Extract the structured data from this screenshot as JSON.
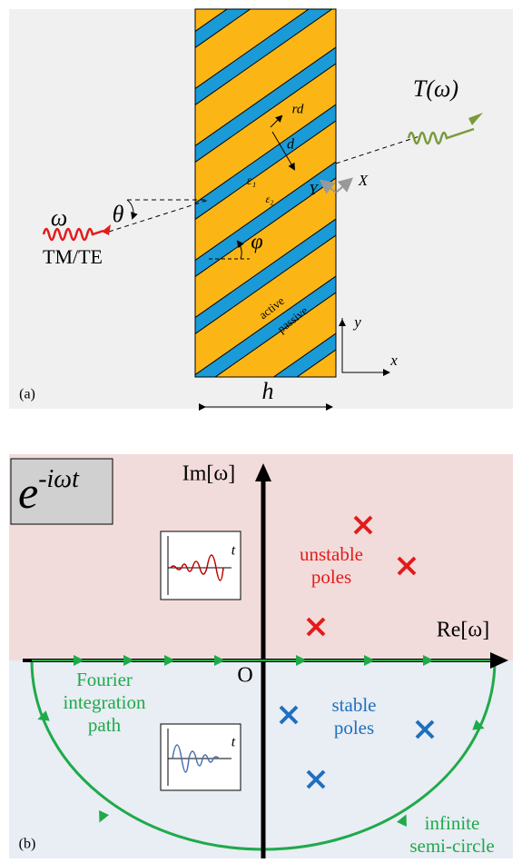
{
  "panel_a": {
    "label": "(a)",
    "incident": {
      "frequency": "ω",
      "angle": "θ",
      "polarization": "TM/TE"
    },
    "transmitted": "T(ω)",
    "slab": {
      "stripe_width": "rd",
      "period": "d",
      "eps1": "ε₁",
      "eps2": "ε₂",
      "axis_Y": "Y",
      "axis_X": "X",
      "tilt": "φ",
      "active": "active",
      "passive": "passive",
      "thickness": "h"
    },
    "axes": {
      "y": "y",
      "x": "x"
    }
  },
  "panel_b": {
    "label": "(b)",
    "time_dependence": {
      "base": "e",
      "exponent": "-iωt"
    },
    "im_axis": "Im[ω]",
    "re_axis": "Re[ω]",
    "origin": "O",
    "inset_top_t": "t",
    "inset_bottom_t": "t",
    "unstable": [
      "unstable",
      "poles"
    ],
    "stable": [
      "stable",
      "poles"
    ],
    "fourier": [
      "Fourier",
      "integration",
      "path"
    ],
    "semicircle": [
      "infinite",
      "semi-circle"
    ]
  }
}
